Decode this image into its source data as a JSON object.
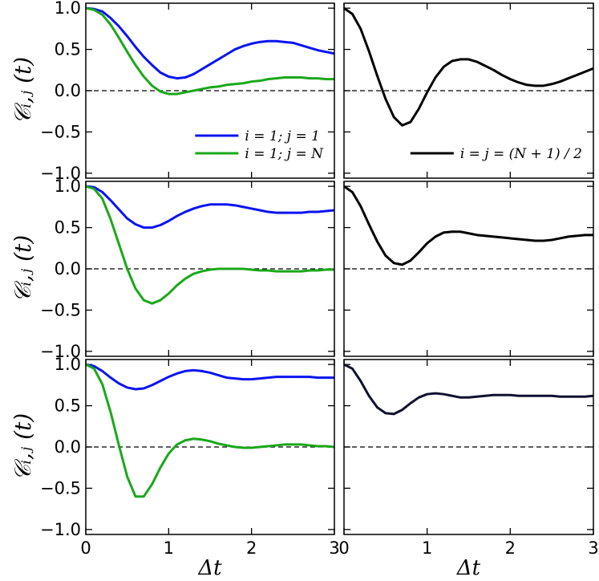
{
  "chart_data": [
    {
      "type": "line",
      "ylabel": "𝒞ᵢ,ⱼ (t)",
      "legend": "lower right",
      "x": [
        0,
        0.1,
        0.2,
        0.3,
        0.4,
        0.5,
        0.6,
        0.7,
        0.8,
        0.9,
        1,
        1.1,
        1.2,
        1.3,
        1.4,
        1.5,
        1.6,
        1.7,
        1.8,
        1.9,
        2,
        2.1,
        2.2,
        2.3,
        2.4,
        2.5,
        2.6,
        2.7,
        2.8,
        2.9,
        3
      ],
      "series": [
        {
          "name": "i = 1;  j = 1",
          "color": "#0a14f0",
          "values": [
            1,
            0.99,
            0.96,
            0.88,
            0.78,
            0.66,
            0.53,
            0.41,
            0.31,
            0.22,
            0.17,
            0.15,
            0.16,
            0.2,
            0.26,
            0.32,
            0.38,
            0.44,
            0.5,
            0.54,
            0.57,
            0.59,
            0.6,
            0.6,
            0.59,
            0.58,
            0.55,
            0.52,
            0.49,
            0.47,
            0.45
          ]
        },
        {
          "name": "i = 1;  j = N",
          "color": "#1aa81a",
          "values": [
            1,
            0.98,
            0.92,
            0.8,
            0.64,
            0.47,
            0.31,
            0.17,
            0.06,
            -0.01,
            -0.04,
            -0.04,
            -0.02,
            0,
            0.02,
            0.04,
            0.05,
            0.07,
            0.08,
            0.09,
            0.11,
            0.12,
            0.14,
            0.15,
            0.16,
            0.16,
            0.16,
            0.15,
            0.15,
            0.14,
            0.14
          ]
        }
      ],
      "reference_line": {
        "y": 0,
        "style": "dashed"
      },
      "xlim": [
        0,
        3
      ],
      "xticks": [
        0,
        1,
        2,
        3
      ],
      "ylim": [
        -1.06,
        1.06
      ],
      "yticks": [
        {
          "value": 1,
          "label": "1.0"
        },
        {
          "value": 0.5,
          "label": "0.5"
        },
        {
          "value": 0,
          "label": "0.0"
        },
        {
          "value": -0.5,
          "label": "−0.5"
        },
        {
          "value": -1,
          "label": "−1.0"
        }
      ]
    },
    {
      "type": "line",
      "legend": "lower right",
      "x": [
        0,
        0.1,
        0.2,
        0.3,
        0.4,
        0.5,
        0.6,
        0.7,
        0.8,
        0.9,
        1,
        1.1,
        1.2,
        1.3,
        1.4,
        1.5,
        1.6,
        1.7,
        1.8,
        1.9,
        2,
        2.1,
        2.2,
        2.3,
        2.4,
        2.5,
        2.6,
        2.7,
        2.8,
        2.9,
        3
      ],
      "series": [
        {
          "name": "i = j = (N + 1) / 2",
          "color": "#000000",
          "values": [
            1,
            0.93,
            0.75,
            0.48,
            0.18,
            -0.1,
            -0.32,
            -0.42,
            -0.38,
            -0.22,
            -0.02,
            0.16,
            0.29,
            0.36,
            0.38,
            0.38,
            0.35,
            0.3,
            0.25,
            0.19,
            0.14,
            0.1,
            0.07,
            0.06,
            0.06,
            0.08,
            0.11,
            0.15,
            0.19,
            0.23,
            0.27
          ]
        }
      ],
      "reference_line": {
        "y": 0,
        "style": "dashed"
      },
      "xlim": [
        0,
        3
      ],
      "xticks": [
        0,
        1,
        2,
        3
      ],
      "ylim": [
        -1.06,
        1.06
      ],
      "yticks": [
        1,
        0.5,
        0,
        -0.5,
        -1
      ]
    },
    {
      "type": "line",
      "ylabel": "𝒞ᵢ,ⱼ (t)",
      "x": [
        0,
        0.1,
        0.2,
        0.3,
        0.4,
        0.5,
        0.6,
        0.7,
        0.8,
        0.9,
        1,
        1.1,
        1.2,
        1.3,
        1.4,
        1.5,
        1.6,
        1.7,
        1.8,
        1.9,
        2,
        2.1,
        2.2,
        2.3,
        2.4,
        2.5,
        2.6,
        2.7,
        2.8,
        2.9,
        3
      ],
      "series": [
        {
          "color": "#0a14f0",
          "values": [
            1,
            0.99,
            0.93,
            0.83,
            0.72,
            0.61,
            0.54,
            0.5,
            0.5,
            0.53,
            0.58,
            0.64,
            0.69,
            0.73,
            0.76,
            0.78,
            0.78,
            0.78,
            0.77,
            0.75,
            0.73,
            0.71,
            0.69,
            0.68,
            0.68,
            0.68,
            0.68,
            0.69,
            0.69,
            0.7,
            0.71
          ]
        },
        {
          "color": "#1aa81a",
          "values": [
            1,
            0.97,
            0.85,
            0.6,
            0.3,
            0,
            -0.24,
            -0.38,
            -0.42,
            -0.38,
            -0.3,
            -0.2,
            -0.12,
            -0.06,
            -0.03,
            -0.01,
            0,
            0,
            0,
            0,
            -0.01,
            -0.02,
            -0.02,
            -0.03,
            -0.03,
            -0.03,
            -0.03,
            -0.02,
            -0.02,
            -0.01,
            -0.01
          ]
        }
      ],
      "reference_line": {
        "y": 0,
        "style": "dashed"
      },
      "xlim": [
        0,
        3
      ],
      "xticks": [
        0,
        1,
        2,
        3
      ],
      "ylim": [
        -1.06,
        1.06
      ],
      "yticks": [
        {
          "value": 1,
          "label": "1.0"
        },
        {
          "value": 0.5,
          "label": "0.5"
        },
        {
          "value": 0,
          "label": "0.0"
        },
        {
          "value": -0.5,
          "label": "−0.5"
        },
        {
          "value": -1,
          "label": "−1.0"
        }
      ]
    },
    {
      "type": "line",
      "x": [
        0,
        0.1,
        0.2,
        0.3,
        0.4,
        0.5,
        0.6,
        0.7,
        0.8,
        0.9,
        1,
        1.1,
        1.2,
        1.3,
        1.4,
        1.5,
        1.6,
        1.7,
        1.8,
        1.9,
        2,
        2.1,
        2.2,
        2.3,
        2.4,
        2.5,
        2.6,
        2.7,
        2.8,
        2.9,
        3
      ],
      "series": [
        {
          "color": "#000000",
          "values": [
            1,
            0.93,
            0.76,
            0.54,
            0.33,
            0.16,
            0.07,
            0.05,
            0.1,
            0.2,
            0.31,
            0.39,
            0.44,
            0.45,
            0.45,
            0.43,
            0.41,
            0.4,
            0.39,
            0.38,
            0.37,
            0.36,
            0.35,
            0.34,
            0.34,
            0.35,
            0.37,
            0.39,
            0.4,
            0.41,
            0.41
          ]
        }
      ],
      "reference_line": {
        "y": 0,
        "style": "dashed"
      },
      "xlim": [
        0,
        3
      ],
      "xticks": [
        0,
        1,
        2,
        3
      ],
      "ylim": [
        -1.06,
        1.06
      ],
      "yticks": [
        1,
        0.5,
        0,
        -0.5,
        -1
      ]
    },
    {
      "type": "line",
      "ylabel": "𝒞ᵢ,ⱼ (t)",
      "xlabel": "Δt",
      "x": [
        0,
        0.1,
        0.2,
        0.3,
        0.4,
        0.5,
        0.6,
        0.7,
        0.8,
        0.9,
        1,
        1.1,
        1.2,
        1.3,
        1.4,
        1.5,
        1.6,
        1.7,
        1.8,
        1.9,
        2,
        2.1,
        2.2,
        2.3,
        2.4,
        2.5,
        2.6,
        2.7,
        2.8,
        2.9,
        3
      ],
      "series": [
        {
          "color": "#0a14f0",
          "values": [
            1,
            0.98,
            0.92,
            0.84,
            0.77,
            0.72,
            0.7,
            0.71,
            0.75,
            0.8,
            0.85,
            0.89,
            0.92,
            0.93,
            0.92,
            0.9,
            0.87,
            0.84,
            0.83,
            0.82,
            0.82,
            0.83,
            0.84,
            0.85,
            0.85,
            0.85,
            0.85,
            0.85,
            0.84,
            0.84,
            0.84
          ]
        },
        {
          "color": "#1aa81a",
          "values": [
            1,
            0.95,
            0.76,
            0.42,
            0.02,
            -0.36,
            -0.6,
            -0.6,
            -0.45,
            -0.25,
            -0.08,
            0.03,
            0.08,
            0.1,
            0.09,
            0.07,
            0.04,
            0.02,
            0,
            -0.01,
            -0.01,
            0,
            0.01,
            0.02,
            0.03,
            0.03,
            0.03,
            0.02,
            0.01,
            0.01,
            0
          ]
        }
      ],
      "reference_line": {
        "y": 0,
        "style": "dashed"
      },
      "xlim": [
        0,
        3
      ],
      "xticks": [
        0,
        1,
        2,
        3
      ],
      "ylim": [
        -1.06,
        1.06
      ],
      "yticks": [
        {
          "value": 1,
          "label": "1.0"
        },
        {
          "value": 0.5,
          "label": "0.5"
        },
        {
          "value": 0,
          "label": "0.0"
        },
        {
          "value": -0.5,
          "label": "−0.5"
        },
        {
          "value": -1,
          "label": "−1.0"
        }
      ]
    },
    {
      "type": "line",
      "xlabel": "Δt",
      "x": [
        0,
        0.1,
        0.2,
        0.3,
        0.4,
        0.5,
        0.6,
        0.7,
        0.8,
        0.9,
        1,
        1.1,
        1.2,
        1.3,
        1.4,
        1.5,
        1.6,
        1.7,
        1.8,
        1.9,
        2,
        2.1,
        2.2,
        2.3,
        2.4,
        2.5,
        2.6,
        2.7,
        2.8,
        2.9,
        3
      ],
      "series": [
        {
          "color": "#101030",
          "values": [
            1,
            0.95,
            0.8,
            0.62,
            0.48,
            0.41,
            0.4,
            0.45,
            0.53,
            0.6,
            0.64,
            0.65,
            0.64,
            0.62,
            0.6,
            0.6,
            0.61,
            0.62,
            0.63,
            0.63,
            0.63,
            0.62,
            0.62,
            0.62,
            0.62,
            0.62,
            0.61,
            0.61,
            0.61,
            0.61,
            0.62
          ]
        }
      ],
      "reference_line": {
        "y": 0,
        "style": "dashed"
      },
      "xlim": [
        0,
        3
      ],
      "xticks": [
        0,
        1,
        2,
        3
      ],
      "ylim": [
        -1.06,
        1.06
      ],
      "yticks": [
        1,
        0.5,
        0,
        -0.5,
        -1
      ]
    }
  ]
}
